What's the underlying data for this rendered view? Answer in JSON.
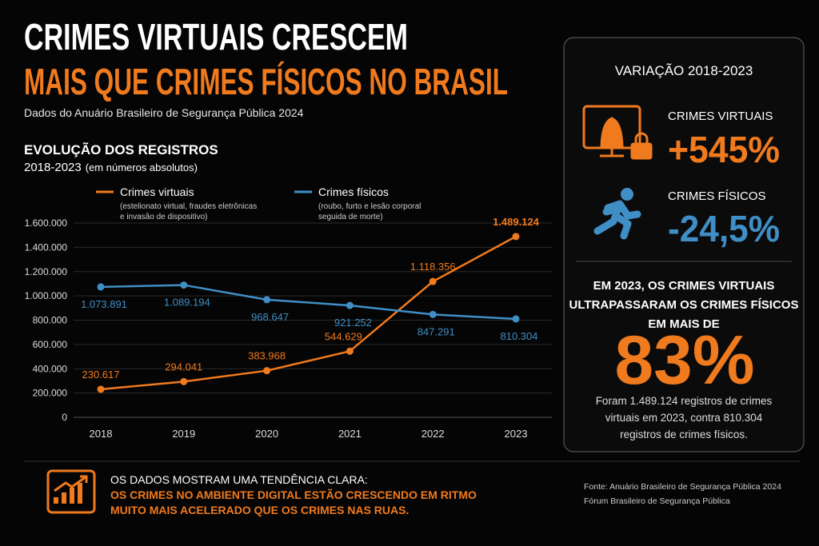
{
  "header": {
    "title_line1": "CRIMES VIRTUAIS CRESCEM",
    "title_line2": "MAIS QUE CRIMES FÍSICOS NO BRASIL",
    "subtitle": "Dados do Anuário Brasileiro de Segurança Pública 2024"
  },
  "chart_data": {
    "type": "line",
    "title": "EVOLUÇÃO DOS REGISTROS",
    "subtitle": "2018-2023",
    "subtitle_note": "(em números absolutos)",
    "categories": [
      "2018",
      "2019",
      "2020",
      "2021",
      "2022",
      "2023"
    ],
    "series": [
      {
        "name": "Crimes virtuais",
        "description_lines": [
          "(estelionato virtual, fraudes eletrônicas",
          "e invasão de dispositivo)"
        ],
        "color": "#f07a1e",
        "values": [
          230617,
          294041,
          383968,
          544629,
          1118356,
          1489124
        ],
        "value_labels": [
          "230.617",
          "294.041",
          "383.968",
          "544.629",
          "1.118.356",
          "1.489.124"
        ]
      },
      {
        "name": "Crimes físicos",
        "description_lines": [
          "(roubo, furto e lesão corporal",
          "seguida de morte)"
        ],
        "color": "#3f8fc6",
        "values": [
          1073891,
          1089194,
          968647,
          921252,
          847291,
          810304
        ],
        "value_labels": [
          "1.073.891",
          "1.089.194",
          "968.647",
          "921.252",
          "847.291",
          "810.304"
        ]
      }
    ],
    "ylim": [
      0,
      1600000
    ],
    "yticks": [
      0,
      {
        "value": 200000,
        "label": "200.000"
      },
      {
        "value": 400000,
        "label": "400.000"
      },
      {
        "value": 600000,
        "label": "600.000"
      },
      {
        "value": 800000,
        "label": "800.000"
      },
      {
        "value": 1000000,
        "label": "1.000.000"
      },
      {
        "value": 1200000,
        "label": "1.200.000"
      },
      {
        "value": 1400000,
        "label": "1.400.000"
      },
      {
        "value": 1600000,
        "label": "1.600.000"
      }
    ],
    "grid": true
  },
  "panel": {
    "title": "VARIAÇÃO 2018-2023",
    "items": [
      {
        "label": "CRIMES VIRTUAIS",
        "value": "+545%"
      },
      {
        "label": "CRIMES FÍSICOS",
        "value": "-24,5%"
      }
    ],
    "statement_lines": [
      "EM 2023, OS CRIMES VIRTUAIS",
      "ULTRAPASSARAM OS CRIMES FÍSICOS",
      "EM MAIS DE"
    ],
    "highlight": "83%",
    "detail_lines": [
      "Foram 1.489.124 registros de crimes",
      "virtuais em 2023, contra 810.304",
      "registros de crimes físicos."
    ]
  },
  "footer": {
    "lead": "OS DADOS MOSTRAM UMA TENDÊNCIA CLARA:",
    "emphasis_lines": [
      "OS CRIMES NO AMBIENTE DIGITAL ESTÃO CRESCENDO EM RITMO",
      "MUITO MAIS ACELERADO QUE OS CRIMES NAS RUAS."
    ],
    "source_lines": [
      "Fonte: Anuário Brasileiro de Segurança Pública 2024",
      "Fórum Brasileiro de Segurança Pública"
    ]
  }
}
